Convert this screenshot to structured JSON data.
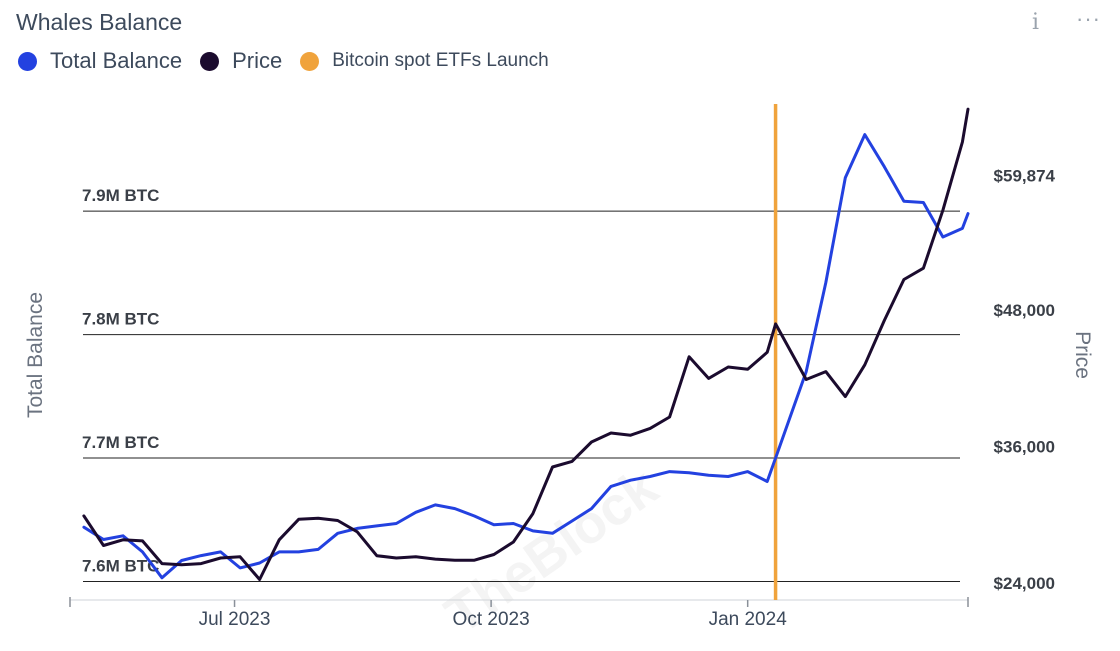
{
  "header": {
    "title": "Whales Balance",
    "info_icon": "i",
    "more_icon": "···"
  },
  "legend": [
    {
      "label": "Total Balance",
      "color": "#2341e0"
    },
    {
      "label": "Price",
      "color": "#1b0b2e"
    },
    {
      "label": "Bitcoin spot ETFs Launch",
      "color": "#f0a33c"
    }
  ],
  "watermark": "TheBlock",
  "chart_data": {
    "type": "line",
    "title": "Whales Balance",
    "xlabel": "",
    "ylabel_left": "Total Balance",
    "ylabel_right": "Price",
    "left_ticks": [
      {
        "value": 7.6,
        "label": "7.6M BTC"
      },
      {
        "value": 7.7,
        "label": "7.7M BTC"
      },
      {
        "value": 7.8,
        "label": "7.8M BTC"
      },
      {
        "value": 7.9,
        "label": "7.9M BTC"
      }
    ],
    "right_ticks": [
      {
        "value": 24000,
        "label": "$24,000"
      },
      {
        "value": 36000,
        "label": "$36,000"
      },
      {
        "value": 48000,
        "label": "$48,000"
      },
      {
        "value": 59874,
        "label": "$59,874"
      }
    ],
    "x_ticks": [
      {
        "date": "2023-07-01",
        "label": "Jul 2023"
      },
      {
        "date": "2023-10-01",
        "label": "Oct 2023"
      },
      {
        "date": "2024-01-01",
        "label": "Jan 2024"
      }
    ],
    "x_range": [
      "2023-05-03",
      "2024-03-20"
    ],
    "ylim_left": [
      7.585,
      7.99
    ],
    "ylim_right": [
      22500,
      66500
    ],
    "event": {
      "date": "2024-01-11",
      "label": "Bitcoin spot ETFs Launch",
      "color": "#f0a33c"
    },
    "grid": "horizontal",
    "legend_position": "top-left",
    "series": [
      {
        "name": "Total Balance",
        "axis": "left",
        "color": "#2341e0",
        "x": [
          "2023-05-08",
          "2023-05-15",
          "2023-05-22",
          "2023-05-29",
          "2023-06-05",
          "2023-06-12",
          "2023-06-19",
          "2023-06-26",
          "2023-07-03",
          "2023-07-10",
          "2023-07-17",
          "2023-07-24",
          "2023-07-31",
          "2023-08-07",
          "2023-08-14",
          "2023-08-21",
          "2023-08-28",
          "2023-09-04",
          "2023-09-11",
          "2023-09-18",
          "2023-09-25",
          "2023-10-02",
          "2023-10-09",
          "2023-10-16",
          "2023-10-23",
          "2023-10-30",
          "2023-11-06",
          "2023-11-13",
          "2023-11-20",
          "2023-11-27",
          "2023-12-04",
          "2023-12-11",
          "2023-12-18",
          "2023-12-25",
          "2024-01-01",
          "2024-01-08",
          "2024-01-11",
          "2024-01-22",
          "2024-01-29",
          "2024-02-05",
          "2024-02-12",
          "2024-02-19",
          "2024-02-26",
          "2024-03-04",
          "2024-03-11",
          "2024-03-18",
          "2024-03-20"
        ],
        "values": [
          7.644,
          7.634,
          7.637,
          7.624,
          7.603,
          7.617,
          7.621,
          7.624,
          7.611,
          7.615,
          7.624,
          7.624,
          7.626,
          7.639,
          7.643,
          7.645,
          7.647,
          7.656,
          7.662,
          7.659,
          7.653,
          7.646,
          7.647,
          7.641,
          7.639,
          7.649,
          7.659,
          7.677,
          7.682,
          7.685,
          7.689,
          7.688,
          7.686,
          7.685,
          7.689,
          7.681,
          7.7,
          7.77,
          7.842,
          7.927,
          7.962,
          7.936,
          7.908,
          7.907,
          7.879,
          7.886,
          7.898
        ]
      },
      {
        "name": "Price",
        "axis": "right",
        "color": "#1b0b2e",
        "x": [
          "2023-05-08",
          "2023-05-15",
          "2023-05-22",
          "2023-05-29",
          "2023-06-05",
          "2023-06-12",
          "2023-06-19",
          "2023-06-26",
          "2023-07-03",
          "2023-07-10",
          "2023-07-17",
          "2023-07-24",
          "2023-07-31",
          "2023-08-07",
          "2023-08-14",
          "2023-08-21",
          "2023-08-28",
          "2023-09-04",
          "2023-09-11",
          "2023-09-18",
          "2023-09-25",
          "2023-10-02",
          "2023-10-09",
          "2023-10-16",
          "2023-10-23",
          "2023-10-30",
          "2023-11-06",
          "2023-11-13",
          "2023-11-20",
          "2023-11-27",
          "2023-12-04",
          "2023-12-11",
          "2023-12-18",
          "2023-12-25",
          "2024-01-01",
          "2024-01-08",
          "2024-01-11",
          "2024-01-22",
          "2024-01-29",
          "2024-02-05",
          "2024-02-12",
          "2024-02-19",
          "2024-02-26",
          "2024-03-04",
          "2024-03-11",
          "2024-03-18",
          "2024-03-20"
        ],
        "values": [
          29900,
          27300,
          27800,
          27700,
          25700,
          25600,
          25700,
          26200,
          26300,
          24300,
          27800,
          29600,
          29700,
          29500,
          28500,
          26400,
          26200,
          26300,
          26100,
          26000,
          26000,
          26500,
          27600,
          30100,
          34200,
          34700,
          36400,
          37200,
          37000,
          37600,
          38600,
          43900,
          42000,
          43000,
          42800,
          44300,
          46800,
          41900,
          42600,
          40400,
          43200,
          47100,
          50700,
          51700,
          56800,
          62800,
          65700
        ]
      }
    ]
  }
}
